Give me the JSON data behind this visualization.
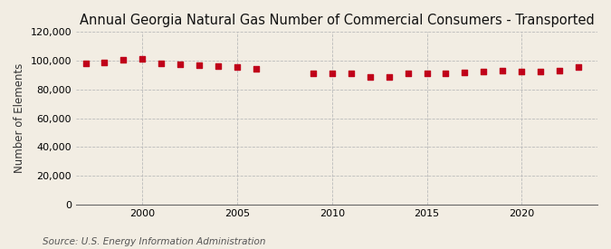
{
  "title": "Annual Georgia Natural Gas Number of Commercial Consumers - Transported",
  "ylabel": "Number of Elements",
  "source": "Source: U.S. Energy Information Administration",
  "background_color": "#f2ede3",
  "plot_bg_color": "#f2ede3",
  "marker_color": "#c0001a",
  "years": [
    1997,
    1998,
    1999,
    2000,
    2001,
    2002,
    2003,
    2004,
    2005,
    2006,
    2009,
    2010,
    2011,
    2012,
    2013,
    2014,
    2015,
    2016,
    2017,
    2018,
    2019,
    2020,
    2021,
    2022,
    2023
  ],
  "values": [
    98200,
    99000,
    101000,
    101300,
    98000,
    97500,
    97200,
    96500,
    95800,
    94500,
    91500,
    91200,
    91000,
    89000,
    88500,
    91000,
    91000,
    91500,
    92000,
    92500,
    93000,
    92500,
    92500,
    93000,
    95500
  ],
  "ylim": [
    0,
    120000
  ],
  "yticks": [
    0,
    20000,
    40000,
    60000,
    80000,
    100000,
    120000
  ],
  "xlim": [
    1996.5,
    2024
  ],
  "grid_color": "#bbbbbb",
  "title_fontsize": 10.5,
  "label_fontsize": 8.5,
  "tick_fontsize": 8,
  "xtick_vals": [
    2000,
    2005,
    2010,
    2015,
    2020
  ]
}
